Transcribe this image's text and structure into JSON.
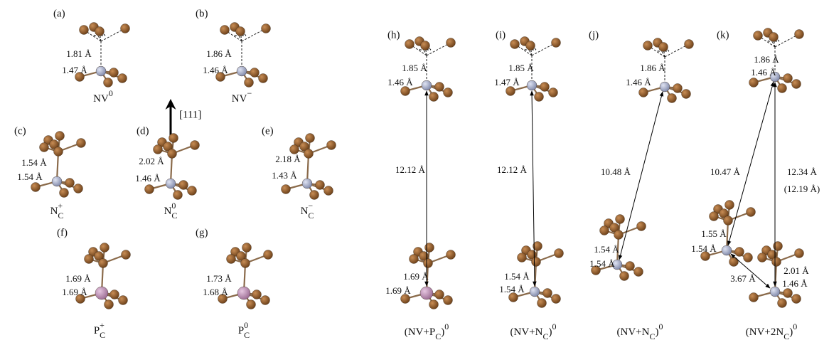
{
  "axis_label": "[111]",
  "panels": [
    {
      "label": "(a)",
      "caption": [
        {
          "text": "NV"
        },
        {
          "sup": "0"
        }
      ],
      "distances": [
        "1.81 Å",
        "1.47 Å"
      ]
    },
    {
      "label": "(b)",
      "caption": [
        {
          "text": "NV"
        },
        {
          "sup": "−"
        }
      ],
      "distances": [
        "1.86 Å",
        "1.46 Å"
      ]
    },
    {
      "label": "(c)",
      "caption": [
        {
          "text": "N"
        },
        {
          "sub": "C"
        },
        {
          "sup": "+"
        }
      ],
      "distances": [
        "1.54 Å",
        "1.54 Å"
      ]
    },
    {
      "label": "(d)",
      "caption": [
        {
          "text": "N"
        },
        {
          "sub": "C"
        },
        {
          "sup": "0"
        }
      ],
      "distances": [
        "2.02 Å",
        "1.46 Å"
      ]
    },
    {
      "label": "(e)",
      "caption": [
        {
          "text": "N"
        },
        {
          "sub": "C"
        },
        {
          "sup": "−"
        }
      ],
      "distances": [
        "2.18 Å",
        "1.43 Å"
      ]
    },
    {
      "label": "(f)",
      "caption": [
        {
          "text": "P"
        },
        {
          "sub": "C"
        },
        {
          "sup": "+"
        }
      ],
      "distances": [
        "1.69 Å",
        "1.69 Å"
      ]
    },
    {
      "label": "(g)",
      "caption": [
        {
          "text": "P"
        },
        {
          "sub": "C"
        },
        {
          "sup": "0"
        }
      ],
      "distances": [
        "1.73 Å",
        "1.68 Å"
      ]
    },
    {
      "label": "(h)",
      "caption": [
        {
          "text": "(NV+P"
        },
        {
          "sub": "C"
        },
        {
          "text": ")"
        },
        {
          "sup": "0"
        }
      ],
      "distances": [
        "1.85 Å",
        "1.46 Å",
        "12.12 Å",
        "1.69 Å",
        "1.69 Å"
      ]
    },
    {
      "label": "(i)",
      "caption": [
        {
          "text": "(NV+N"
        },
        {
          "sub": "C"
        },
        {
          "text": ")"
        },
        {
          "sup": "0"
        }
      ],
      "distances": [
        "1.85 Å",
        "1.47 Å",
        "12.12 Å",
        "1.54 Å",
        "1.54 Å"
      ]
    },
    {
      "label": "(j)",
      "caption": [
        {
          "text": "(NV+N"
        },
        {
          "sub": "C"
        },
        {
          "text": ")"
        },
        {
          "sup": "0"
        }
      ],
      "distances": [
        "1.86 Å",
        "1.46 Å",
        "10.48 Å",
        "1.54 Å",
        "1.54 Å"
      ]
    },
    {
      "label": "(k)",
      "caption": [
        {
          "text": "(NV+2N"
        },
        {
          "sub": "C"
        },
        {
          "text": ")"
        },
        {
          "sup": "0"
        }
      ],
      "distances": [
        "1.86 Å",
        "1.46 Å",
        "10.47 Å",
        "12.34 Å",
        "(12.19 Å)",
        "1.55 Å",
        "1.54 Å",
        "3.67 Å",
        "2.01 Å",
        "1.46 Å"
      ]
    }
  ]
}
